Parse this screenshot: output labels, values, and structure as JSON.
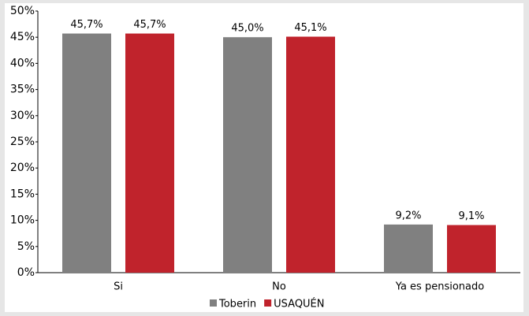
{
  "chart_data": {
    "type": "bar",
    "categories": [
      "Si",
      "No",
      "Ya es pensionado"
    ],
    "series": [
      {
        "name": "Toberin",
        "color": "#808080",
        "values": [
          45.7,
          45.0,
          9.2
        ],
        "value_labels": [
          "45,7%",
          "45,0%",
          "9,2%"
        ]
      },
      {
        "name": "USAQUÉN",
        "color": "#c0232c",
        "values": [
          45.7,
          45.1,
          9.1
        ],
        "value_labels": [
          "45,7%",
          "45,1%",
          "9,1%"
        ]
      }
    ],
    "ylim": [
      0,
      50
    ],
    "yticks": [
      {
        "value": 0,
        "label": "0%"
      },
      {
        "value": 5,
        "label": "5%"
      },
      {
        "value": 10,
        "label": "10%"
      },
      {
        "value": 15,
        "label": "15%"
      },
      {
        "value": 20,
        "label": "20%"
      },
      {
        "value": 25,
        "label": "25%"
      },
      {
        "value": 30,
        "label": "30%"
      },
      {
        "value": 35,
        "label": "35%"
      },
      {
        "value": 40,
        "label": "40%"
      },
      {
        "value": 45,
        "label": "45%"
      },
      {
        "value": 50,
        "label": "50%"
      }
    ],
    "grid": false,
    "legend": "bottom"
  }
}
